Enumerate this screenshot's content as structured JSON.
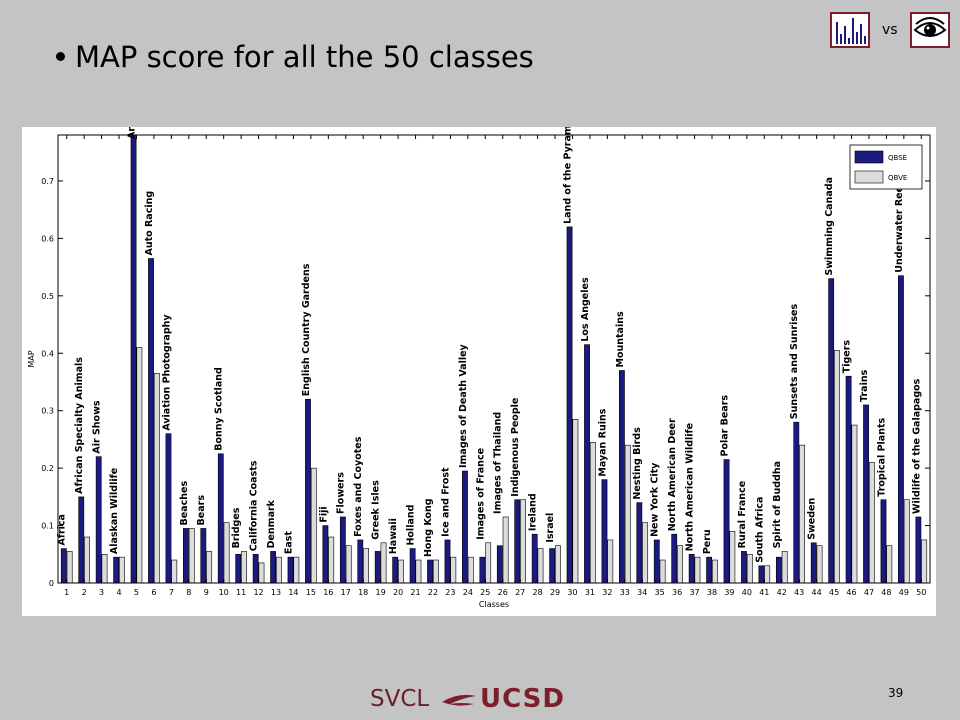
{
  "slide": {
    "title": "MAP score for all the 50 classes",
    "vs_label": "vs",
    "page_number": "39",
    "footer_left": "SVCL",
    "footer_right": "UCSD"
  },
  "chart_data": {
    "type": "bar",
    "title": "",
    "xlabel": "Classes",
    "ylabel": "MAP",
    "ylim": [
      0,
      0.78
    ],
    "yticks": [
      0,
      0.1,
      0.2,
      0.3,
      0.4,
      0.5,
      0.6,
      0.7
    ],
    "legend_position": "top-right",
    "x": [
      1,
      2,
      3,
      4,
      5,
      6,
      7,
      8,
      9,
      10,
      11,
      12,
      13,
      14,
      15,
      16,
      17,
      18,
      19,
      20,
      21,
      22,
      23,
      24,
      25,
      26,
      27,
      28,
      29,
      30,
      31,
      32,
      33,
      34,
      35,
      36,
      37,
      38,
      39,
      40,
      41,
      42,
      43,
      44,
      45,
      46,
      47,
      48,
      49,
      50
    ],
    "categories": [
      "Africa",
      "African Specialty Animals",
      "Air Shows",
      "Alaskan Wildlife",
      "Arabian Horses",
      "Auto Racing",
      "Aviation Photography",
      "Beaches",
      "Bears",
      "Bonny Scotland",
      "Bridges",
      "California Coasts",
      "Denmark",
      "East",
      "English Country Gardens",
      "Fiji",
      "Flowers",
      "Foxes and Coyotes",
      "Greek Isles",
      "Hawaii",
      "Holland",
      "Hong Kong",
      "Ice and Frost",
      "Images of Death Valley",
      "Images of France",
      "Images of Thailand",
      "Indigenous People",
      "Ireland",
      "Israel",
      "Land of the Pyramids",
      "Los Angeles",
      "Mayan Ruins",
      "Mountains",
      "Nesting Birds",
      "New York City",
      "North American Deer",
      "North American Wildlife",
      "Peru",
      "Polar Bears",
      "Rural France",
      "South Africa",
      "Spirit of Buddha",
      "Sunsets and Sunrises",
      "Sweden",
      "Swimming Canada",
      "Tigers",
      "Trains",
      "Tropical Plants",
      "Underwater Reefs",
      "Wildlife of the Galapagos"
    ],
    "series": [
      {
        "name": "QBSE",
        "color": "#1a1a80",
        "values": [
          0.06,
          0.15,
          0.22,
          0.045,
          0.78,
          0.565,
          0.26,
          0.095,
          0.095,
          0.225,
          0.05,
          0.05,
          0.055,
          0.045,
          0.32,
          0.1,
          0.115,
          0.075,
          0.055,
          0.045,
          0.06,
          0.04,
          0.075,
          0.195,
          0.045,
          0.065,
          0.145,
          0.085,
          0.06,
          0.62,
          0.415,
          0.18,
          0.37,
          0.14,
          0.075,
          0.085,
          0.05,
          0.045,
          0.215,
          0.055,
          0.03,
          0.045,
          0.28,
          0.07,
          0.53,
          0.36,
          0.31,
          0.145,
          0.535,
          0.115
        ]
      },
      {
        "name": "QBVE",
        "color": "#dcdcdc",
        "values": [
          0.055,
          0.08,
          0.05,
          0.045,
          0.41,
          0.365,
          0.04,
          0.095,
          0.055,
          0.105,
          0.055,
          0.035,
          0.045,
          0.045,
          0.2,
          0.08,
          0.065,
          0.06,
          0.07,
          0.04,
          0.04,
          0.04,
          0.045,
          0.045,
          0.07,
          0.115,
          0.145,
          0.06,
          0.065,
          0.285,
          0.245,
          0.075,
          0.24,
          0.105,
          0.04,
          0.065,
          0.045,
          0.04,
          0.09,
          0.05,
          0.03,
          0.055,
          0.24,
          0.065,
          0.405,
          0.275,
          0.21,
          0.065,
          0.145,
          0.075
        ]
      }
    ]
  }
}
